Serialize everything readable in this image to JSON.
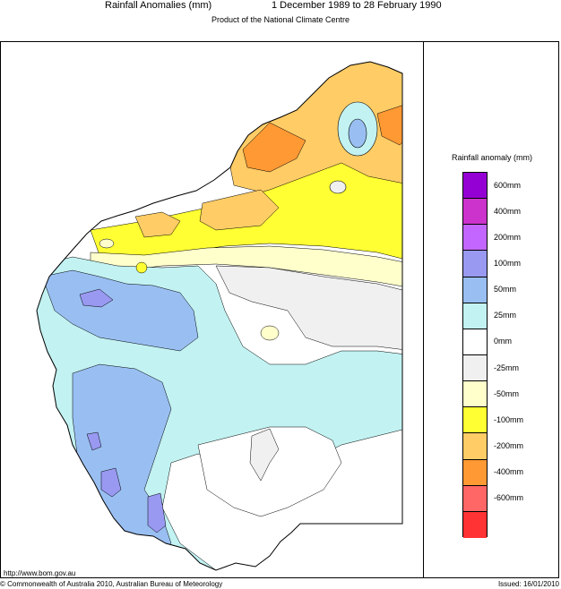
{
  "header": {
    "title_left": "Rainfall Anomalies (mm)",
    "title_right": "1 December 1989 to 28 February 1990",
    "subtitle": "Product of the National Climate Centre"
  },
  "legend": {
    "title": "Rainfall anomaly (mm)",
    "items": [
      {
        "label": "600mm",
        "color": "#9400d3"
      },
      {
        "label": "400mm",
        "color": "#cc33cc"
      },
      {
        "label": "200mm",
        "color": "#c266ff"
      },
      {
        "label": "100mm",
        "color": "#9999f2"
      },
      {
        "label": "50mm",
        "color": "#99bff2"
      },
      {
        "label": "25mm",
        "color": "#c2f2f2"
      },
      {
        "label": "0mm",
        "color": "#ffffff"
      },
      {
        "label": "-25mm",
        "color": "#f0f0f0"
      },
      {
        "label": "-50mm",
        "color": "#ffffcc"
      },
      {
        "label": "-100mm",
        "color": "#ffff33"
      },
      {
        "label": "-200mm",
        "color": "#ffcc66"
      },
      {
        "label": "-400mm",
        "color": "#ff9933"
      },
      {
        "label": "-600mm",
        "color": "#ff6666"
      },
      {
        "label": "",
        "color": "#ff3333"
      }
    ]
  },
  "footer": {
    "url": "http://www.bom.gov.au",
    "copyright": "© Commonwealth of Australia 2010, Australian Bureau of Meteorology",
    "issued": "Issued: 16/01/2010"
  }
}
